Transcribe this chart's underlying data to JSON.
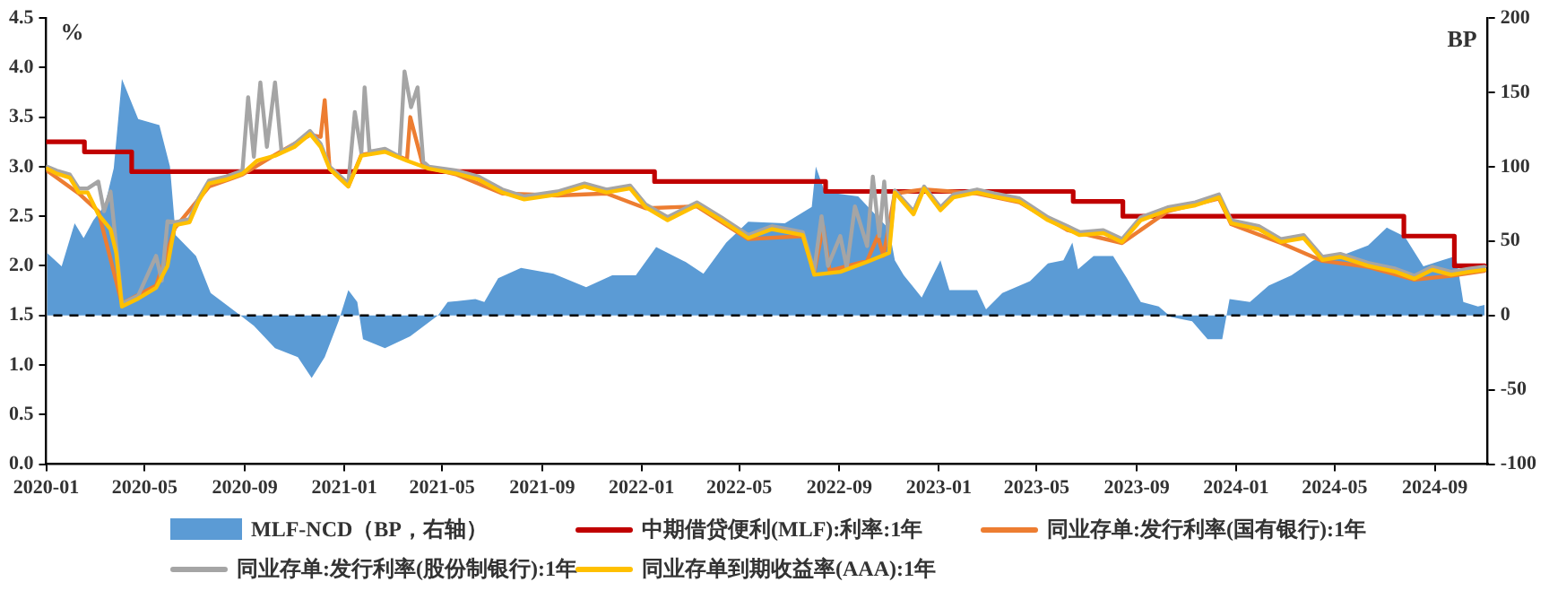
{
  "chart_data": {
    "type": "line",
    "ylabel": "%",
    "y2label": "BP",
    "xlim": [
      "2020-01-01",
      "2024-11-05"
    ],
    "xticks": [
      "2020-01",
      "2020-05",
      "2020-09",
      "2021-01",
      "2021-05",
      "2021-09",
      "2022-01",
      "2022-05",
      "2022-09",
      "2023-01",
      "2023-05",
      "2023-09",
      "2024-01",
      "2024-05",
      "2024-09"
    ],
    "ylim": [
      0,
      4.5
    ],
    "yticks": [
      {
        "value": 0,
        "label": "0.0"
      },
      0.5,
      {
        "value": 1,
        "label": "1.0"
      },
      1.5,
      {
        "value": 2,
        "label": "2.0"
      },
      2.5,
      {
        "value": 3,
        "label": "3.0"
      },
      3.5,
      {
        "value": 4,
        "label": "4.0"
      },
      4.5
    ],
    "y2lim": [
      -100,
      200
    ],
    "y2ticks": [
      -100,
      -50,
      0,
      50,
      100,
      150,
      200
    ],
    "grid": false,
    "legend": "bottom",
    "ref_lines": [
      {
        "axis": "y2",
        "value": 0,
        "color": "#000000",
        "line_style": "dashed"
      }
    ],
    "series": [
      {
        "name": "MLF-NCD（BP，右轴）",
        "type": "area",
        "axis": "y2",
        "color": "#5b9bd5",
        "x": [
          "2020-01-02",
          "2020-01-20",
          "2020-02-05",
          "2020-02-16",
          "2020-02-28",
          "2020-03-13",
          "2020-03-24",
          "2020-04-03",
          "2020-04-23",
          "2020-05-19",
          "2020-06-01",
          "2020-06-08",
          "2020-07-03",
          "2020-07-21",
          "2020-08-24",
          "2020-09-12",
          "2020-10-08",
          "2020-11-05",
          "2020-11-22",
          "2020-12-08",
          "2020-12-25",
          "2021-01-06",
          "2021-01-17",
          "2021-01-24",
          "2021-02-20",
          "2021-03-23",
          "2021-04-26",
          "2021-05-08",
          "2021-06-11",
          "2021-06-22",
          "2021-07-09",
          "2021-08-06",
          "2021-09-15",
          "2021-10-25",
          "2021-11-26",
          "2021-12-25",
          "2022-01-19",
          "2022-02-24",
          "2022-03-18",
          "2022-04-15",
          "2022-05-12",
          "2022-06-26",
          "2022-07-29",
          "2022-08-03",
          "2022-08-14",
          "2022-09-24",
          "2022-11-01",
          "2022-11-08",
          "2022-11-19",
          "2022-12-11",
          "2023-01-03",
          "2023-01-14",
          "2023-02-17",
          "2023-02-28",
          "2023-03-20",
          "2023-04-23",
          "2023-05-15",
          "2023-06-03",
          "2023-06-14",
          "2023-06-21",
          "2023-07-10",
          "2023-08-03",
          "2023-08-20",
          "2023-09-06",
          "2023-09-28",
          "2023-10-13",
          "2023-11-08",
          "2023-11-27",
          "2023-12-15",
          "2023-12-24",
          "2024-01-18",
          "2024-02-10",
          "2024-03-09",
          "2024-04-05",
          "2024-05-08",
          "2024-06-11",
          "2024-07-04",
          "2024-07-26",
          "2024-08-18",
          "2024-09-10",
          "2024-09-27",
          "2024-10-06",
          "2024-10-24",
          "2024-11-01"
        ],
        "values": [
          42,
          33,
          62,
          52,
          64,
          74,
          99,
          159,
          132,
          128,
          100,
          54,
          40,
          15,
          1,
          -7,
          -22,
          -28,
          -42,
          -28,
          -4,
          17,
          9,
          -16,
          -22,
          -14,
          0,
          9,
          11,
          9,
          25,
          32,
          28,
          19,
          27,
          27,
          46,
          36,
          28,
          49,
          63,
          62,
          73,
          100,
          83,
          80,
          58,
          37,
          27,
          12,
          37,
          17,
          17,
          4,
          15,
          23,
          35,
          37,
          49,
          31,
          40,
          40,
          25,
          9,
          6,
          -1,
          -4,
          -16,
          -16,
          11,
          9,
          20,
          27,
          37,
          40,
          47,
          59,
          53,
          33,
          37,
          40,
          9,
          6,
          7
        ]
      },
      {
        "name": "中期借贷便利(MLF):利率:1年",
        "type": "step",
        "color": "#c00000",
        "x": [
          "2020-01-02",
          "2020-02-17",
          "2020-04-15",
          "2022-01-17",
          "2022-08-15",
          "2023-06-15",
          "2023-08-15",
          "2024-07-25",
          "2024-09-25",
          "2024-11-01"
        ],
        "values": [
          3.25,
          3.15,
          2.95,
          2.85,
          2.75,
          2.65,
          2.5,
          2.3,
          2.0,
          2.0
        ]
      },
      {
        "name": "同业存单:发行利率(国有银行):1年",
        "color": "#ed7d31",
        "x": [
          "2020-01-02",
          "2020-02-10",
          "2020-03-05",
          "2020-04-03",
          "2020-05-15",
          "2020-06-07",
          "2020-07-19",
          "2020-08-29",
          "2020-10-08",
          "2020-11-20",
          "2020-12-03",
          "2020-12-08",
          "2020-12-14",
          "2021-01-06",
          "2021-01-22",
          "2021-02-20",
          "2021-03-19",
          "2021-03-23",
          "2021-04-08",
          "2021-05-19",
          "2021-07-14",
          "2021-09-20",
          "2021-11-19",
          "2022-01-06",
          "2022-03-10",
          "2022-05-12",
          "2022-07-18",
          "2022-08-01",
          "2022-08-12",
          "2022-08-20",
          "2022-10-05",
          "2022-10-18",
          "2022-10-25",
          "2022-11-08",
          "2022-12-14",
          "2023-02-17",
          "2023-04-10",
          "2023-06-08",
          "2023-08-14",
          "2023-10-09",
          "2023-12-11",
          "2023-12-26",
          "2024-02-25",
          "2024-04-16",
          "2024-06-11",
          "2024-08-07",
          "2024-09-21",
          "2024-11-01"
        ],
        "values": [
          2.96,
          2.73,
          2.55,
          1.62,
          1.8,
          2.38,
          2.8,
          2.92,
          3.12,
          3.32,
          3.3,
          3.67,
          2.98,
          2.8,
          3.12,
          3.16,
          3.07,
          3.5,
          3.0,
          2.92,
          2.73,
          2.71,
          2.73,
          2.58,
          2.6,
          2.27,
          2.3,
          1.93,
          2.4,
          1.95,
          2.05,
          2.3,
          2.1,
          2.73,
          2.77,
          2.73,
          2.64,
          2.36,
          2.23,
          2.55,
          2.68,
          2.42,
          2.23,
          2.05,
          1.99,
          1.86,
          1.9,
          1.95
        ]
      },
      {
        "name": "同业存单:发行利率(股份制银行):1年",
        "color": "#a5a5a5",
        "x": [
          "2020-01-02",
          "2020-01-14",
          "2020-01-30",
          "2020-02-10",
          "2020-02-21",
          "2020-03-05",
          "2020-03-12",
          "2020-03-20",
          "2020-03-27",
          "2020-04-03",
          "2020-04-23",
          "2020-05-15",
          "2020-05-22",
          "2020-05-29",
          "2020-06-07",
          "2020-06-25",
          "2020-07-06",
          "2020-07-19",
          "2020-08-09",
          "2020-08-29",
          "2020-09-05",
          "2020-09-12",
          "2020-09-20",
          "2020-09-28",
          "2020-10-08",
          "2020-10-16",
          "2020-11-01",
          "2020-11-20",
          "2020-12-03",
          "2020-12-14",
          "2021-01-06",
          "2021-01-14",
          "2021-01-22",
          "2021-01-26",
          "2021-02-01",
          "2021-02-20",
          "2021-03-10",
          "2021-03-16",
          "2021-03-24",
          "2021-04-01",
          "2021-04-08",
          "2021-04-15",
          "2021-05-19",
          "2021-06-15",
          "2021-07-14",
          "2021-08-10",
          "2021-09-20",
          "2021-10-23",
          "2021-11-19",
          "2021-12-18",
          "2022-01-06",
          "2022-02-02",
          "2022-03-10",
          "2022-04-09",
          "2022-05-12",
          "2022-06-10",
          "2022-07-18",
          "2022-08-01",
          "2022-08-10",
          "2022-08-18",
          "2022-09-02",
          "2022-09-10",
          "2022-09-20",
          "2022-10-05",
          "2022-10-12",
          "2022-10-20",
          "2022-10-26",
          "2022-11-01",
          "2022-11-08",
          "2022-12-01",
          "2022-12-14",
          "2023-01-03",
          "2023-01-19",
          "2023-02-17",
          "2023-03-10",
          "2023-04-10",
          "2023-05-15",
          "2023-06-08",
          "2023-06-23",
          "2023-07-22",
          "2023-08-14",
          "2023-09-06",
          "2023-10-09",
          "2023-11-12",
          "2023-12-11",
          "2023-12-26",
          "2024-01-29",
          "2024-02-25",
          "2024-03-24",
          "2024-04-16",
          "2024-05-08",
          "2024-06-11",
          "2024-07-15",
          "2024-08-07",
          "2024-08-29",
          "2024-09-21",
          "2024-10-13",
          "2024-11-01"
        ],
        "values": [
          3.0,
          2.96,
          2.92,
          2.78,
          2.78,
          2.85,
          2.55,
          2.75,
          2.2,
          1.62,
          1.7,
          2.1,
          1.85,
          2.45,
          2.44,
          2.47,
          2.68,
          2.86,
          2.9,
          2.96,
          3.7,
          3.1,
          3.85,
          3.2,
          3.85,
          3.15,
          3.23,
          3.36,
          3.23,
          3.0,
          2.83,
          3.55,
          3.14,
          3.8,
          3.15,
          3.18,
          3.1,
          3.96,
          3.6,
          3.8,
          3.05,
          3.0,
          2.96,
          2.9,
          2.77,
          2.7,
          2.75,
          2.83,
          2.77,
          2.81,
          2.62,
          2.49,
          2.64,
          2.49,
          2.31,
          2.4,
          2.34,
          1.95,
          2.5,
          2.0,
          2.3,
          1.98,
          2.6,
          2.2,
          2.9,
          2.3,
          2.85,
          2.2,
          2.76,
          2.55,
          2.8,
          2.59,
          2.72,
          2.77,
          2.73,
          2.68,
          2.49,
          2.4,
          2.34,
          2.36,
          2.27,
          2.49,
          2.59,
          2.64,
          2.72,
          2.46,
          2.4,
          2.27,
          2.31,
          2.09,
          2.12,
          2.03,
          1.97,
          1.9,
          1.99,
          1.94,
          1.97,
          1.99
        ]
      },
      {
        "name": "同业存单到期收益率(AAA):1年",
        "color": "#ffc000",
        "x": [
          "2020-01-02",
          "2020-01-14",
          "2020-01-30",
          "2020-02-10",
          "2020-02-21",
          "2020-03-05",
          "2020-03-20",
          "2020-03-27",
          "2020-04-03",
          "2020-04-23",
          "2020-05-15",
          "2020-05-29",
          "2020-06-07",
          "2020-06-25",
          "2020-07-06",
          "2020-07-19",
          "2020-08-09",
          "2020-08-29",
          "2020-09-16",
          "2020-10-08",
          "2020-11-01",
          "2020-11-20",
          "2020-12-03",
          "2020-12-14",
          "2021-01-06",
          "2021-01-22",
          "2021-02-20",
          "2021-03-19",
          "2021-04-15",
          "2021-05-19",
          "2021-06-15",
          "2021-07-14",
          "2021-08-10",
          "2021-09-20",
          "2021-10-23",
          "2021-11-19",
          "2021-12-18",
          "2022-01-06",
          "2022-02-02",
          "2022-03-10",
          "2022-04-09",
          "2022-05-12",
          "2022-06-10",
          "2022-07-18",
          "2022-08-01",
          "2022-09-02",
          "2022-10-05",
          "2022-11-01",
          "2022-11-08",
          "2022-12-01",
          "2022-12-14",
          "2023-01-03",
          "2023-01-19",
          "2023-02-17",
          "2023-03-10",
          "2023-04-10",
          "2023-05-15",
          "2023-06-08",
          "2023-06-23",
          "2023-07-22",
          "2023-08-14",
          "2023-09-06",
          "2023-10-09",
          "2023-11-12",
          "2023-12-11",
          "2023-12-26",
          "2024-01-29",
          "2024-02-25",
          "2024-03-24",
          "2024-04-16",
          "2024-05-08",
          "2024-06-11",
          "2024-07-15",
          "2024-08-07",
          "2024-08-29",
          "2024-09-21",
          "2024-10-13",
          "2024-11-01"
        ],
        "values": [
          2.98,
          2.93,
          2.89,
          2.74,
          2.74,
          2.52,
          2.37,
          2.13,
          1.59,
          1.67,
          1.78,
          2.0,
          2.41,
          2.44,
          2.65,
          2.83,
          2.87,
          2.93,
          3.06,
          3.11,
          3.2,
          3.33,
          3.2,
          2.98,
          2.8,
          3.11,
          3.15,
          3.06,
          2.98,
          2.93,
          2.87,
          2.74,
          2.67,
          2.72,
          2.8,
          2.74,
          2.78,
          2.59,
          2.46,
          2.61,
          2.46,
          2.28,
          2.37,
          2.31,
          1.91,
          1.94,
          2.04,
          2.13,
          2.74,
          2.52,
          2.78,
          2.56,
          2.69,
          2.74,
          2.7,
          2.65,
          2.46,
          2.37,
          2.31,
          2.33,
          2.24,
          2.46,
          2.56,
          2.61,
          2.69,
          2.43,
          2.37,
          2.24,
          2.28,
          2.06,
          2.09,
          2.0,
          1.94,
          1.87,
          1.96,
          1.91,
          1.94,
          1.96
        ]
      }
    ]
  }
}
